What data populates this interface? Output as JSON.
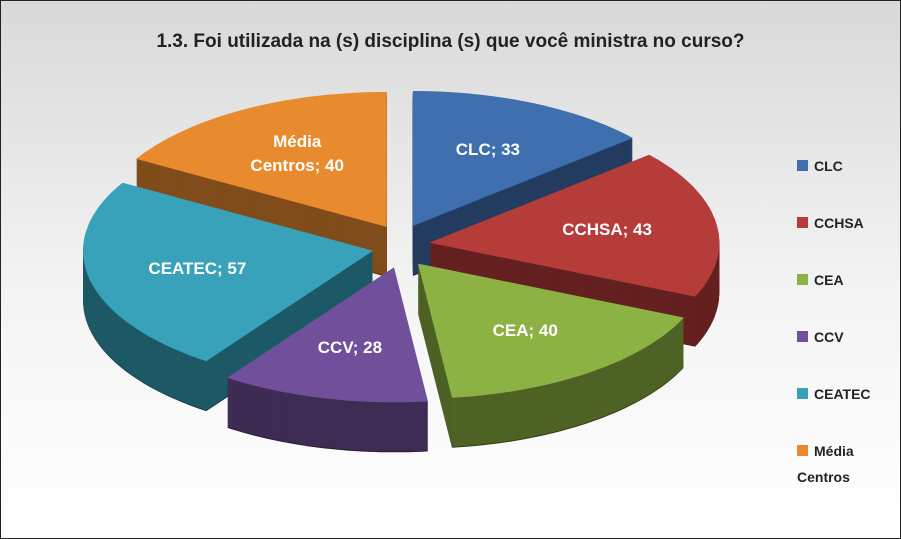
{
  "chart_data": {
    "type": "pie3d",
    "title": "1.3.  Foi utilizada na (s) disciplina (s) que você ministra no curso?",
    "categories": [
      "CLC",
      "CCHSA",
      "CEA",
      "CCV",
      "CEATEC",
      "Média Centros"
    ],
    "values": [
      33,
      43,
      40,
      28,
      57,
      40
    ],
    "value_labels": [
      "CLC; 33",
      "CCHSA; 43",
      "CEA; 40",
      "CCV; 28",
      "CEATEC; 57",
      "Média Centros; 40"
    ],
    "colors": [
      "#3f6fae",
      "#b63c3a",
      "#8db244",
      "#70509a",
      "#37a2ba",
      "#e88b2f"
    ],
    "legend": "right"
  }
}
